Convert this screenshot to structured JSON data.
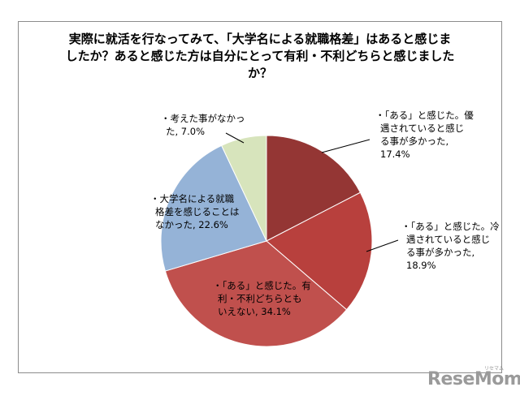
{
  "chart_data": {
    "type": "pie",
    "title": "実際に就活を行なってみて、「大学名による就職格差」はあると感じましたか？あると感じた方は自分にとって有利・不利どちらと感じましたか？",
    "title_lines": [
      "実際に就活を行なってみて、「大学名による就職格差」はあると感じま",
      "したか？あると感じた方は自分にとって有利・不利どちらと感じました",
      "か？"
    ],
    "slices": [
      {
        "label": "・「ある」と感じた。優遇されていると感じる事が多かった",
        "value": 17.4,
        "label_lines": [
          "・「ある」と感じた。優",
          "遇されていると感じ",
          "る事が多かった,",
          "17.4%"
        ],
        "color": "#943634"
      },
      {
        "label": "・「ある」と感じた。冷遇されていると感じる事が多かった",
        "value": 18.9,
        "label_lines": [
          "・「ある」と感じた。冷",
          "遇されていると感じ",
          "る事が多かった,",
          "18.9%"
        ],
        "color": "#b8403d"
      },
      {
        "label": "・「ある」と感じた。有利・不利どちらともいえない",
        "value": 34.1,
        "label_lines": [
          "・「ある」と感じた。有",
          "利・不利どちらとも",
          "いえない, 34.1%"
        ],
        "color": "#c0504d"
      },
      {
        "label": "・大学名による就職格差を感じることはなかった",
        "value": 22.6,
        "label_lines": [
          "・大学名による就職",
          "格差を感じることは",
          "なかった, 22.6%"
        ],
        "color": "#95b3d7"
      },
      {
        "label": "・考えた事がなかった",
        "value": 7.0,
        "label_lines": [
          "・考えた事がなかっ",
          "た, 7.0%"
        ],
        "color": "#d7e4bc"
      }
    ],
    "start": "12 o'clock",
    "direction": "clockwise",
    "legend": "none"
  },
  "watermark": {
    "text": "ReseMom",
    "small_text": "リセマム"
  }
}
